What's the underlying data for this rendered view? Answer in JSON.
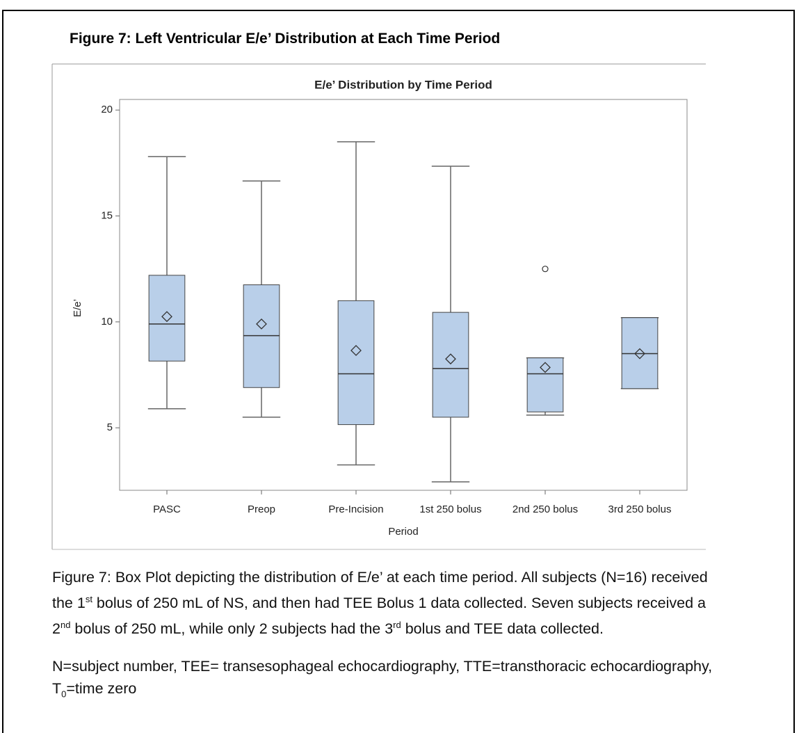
{
  "figure_title": "Figure 7: Left Ventricular E/e’ Distribution at Each Time Period",
  "chart_data": {
    "type": "box",
    "title": "E/e’ Distribution by Time Period",
    "xlabel": "Period",
    "ylabel": "E/e’",
    "categories": [
      "PASC",
      "Preop",
      "Pre-Incision",
      "1st 250 bolus",
      "2nd 250 bolus",
      "3rd 250 bolus"
    ],
    "boxes": [
      {
        "min": 5.9,
        "q1": 8.15,
        "median": 9.9,
        "q3": 12.2,
        "max": 17.8,
        "mean": 10.25,
        "outliers": []
      },
      {
        "min": 5.5,
        "q1": 6.9,
        "median": 9.35,
        "q3": 11.75,
        "max": 16.65,
        "mean": 9.9,
        "outliers": []
      },
      {
        "min": 3.25,
        "q1": 5.15,
        "median": 7.55,
        "q3": 11.0,
        "max": 18.5,
        "mean": 8.65,
        "outliers": []
      },
      {
        "min": 2.45,
        "q1": 5.5,
        "median": 7.8,
        "q3": 10.45,
        "max": 17.35,
        "mean": 8.25,
        "outliers": []
      },
      {
        "min": 5.6,
        "q1": 5.75,
        "median": 7.55,
        "q3": 8.3,
        "max": 8.3,
        "mean": 7.85,
        "outliers": [
          12.5
        ]
      },
      {
        "min": 6.85,
        "q1": 6.85,
        "median": 8.5,
        "q3": 10.2,
        "max": 10.2,
        "mean": 8.5,
        "outliers": []
      }
    ],
    "color": "#b9cfe9",
    "ylim": [
      2.05,
      20.5
    ],
    "yticks": [
      5,
      10,
      15,
      20
    ]
  },
  "caption": [
    "Figure 7: Box Plot depicting the distribution of E/e’ at each time period. All subjects (N=16) received the 1",
    "st",
    " bolus of 250 mL of NS, and then had TEE Bolus 1 data collected. Seven subjects received a 2",
    "nd",
    " bolus of 250 mL, while only 2 subjects had the 3",
    "rd",
    " bolus and TEE data collected."
  ],
  "footnote": [
    "N=subject number, TEE= transesophageal echocardiography, TTE=transthoracic echocardiography, T",
    "0",
    "=time zero"
  ]
}
